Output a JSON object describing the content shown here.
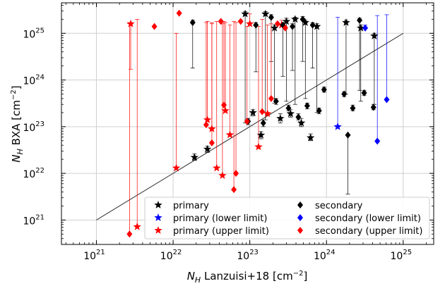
{
  "chart_data": {
    "type": "scatter",
    "xlabel_main": "N",
    "xlabel_sub": "H",
    "xlabel_rest": " Lanzuisi+18 [cm",
    "xlabel_sup": "−2",
    "xlabel_close": "]",
    "ylabel_main": "N",
    "ylabel_sub": "H",
    "ylabel_rest": " BXA [cm",
    "ylabel_sup": "−2",
    "ylabel_close": "]",
    "x_scale": "log",
    "y_scale": "log",
    "xlim": [
      3.5e+20,
      2.5e+25
    ],
    "ylim": [
      3e+20,
      4.5e+25
    ],
    "grid": true,
    "legend_position": "lower-right",
    "x_ticks": [
      {
        "base": "10",
        "exp": "21",
        "value": 1e+21
      },
      {
        "base": "10",
        "exp": "22",
        "value": 1e+22
      },
      {
        "base": "10",
        "exp": "23",
        "value": 1e+23
      },
      {
        "base": "10",
        "exp": "24",
        "value": 1e+24
      },
      {
        "base": "10",
        "exp": "25",
        "value": 1e+25
      }
    ],
    "y_ticks": [
      {
        "base": "10",
        "exp": "21",
        "value": 1e+21
      },
      {
        "base": "10",
        "exp": "22",
        "value": 1e+22
      },
      {
        "base": "10",
        "exp": "23",
        "value": 1e+23
      },
      {
        "base": "10",
        "exp": "24",
        "value": 1e+24
      },
      {
        "base": "10",
        "exp": "25",
        "value": 1e+25
      }
    ],
    "one_to_one_line": {
      "x": [
        1e+21,
        1e+25
      ],
      "y": [
        1e+21,
        1e+25
      ],
      "color": "#333333"
    },
    "legend": [
      {
        "label": "primary",
        "marker": "star",
        "color": "#000000"
      },
      {
        "label": "primary (lower limit)",
        "marker": "star",
        "color": "#0000ff"
      },
      {
        "label": "primary (upper limit)",
        "marker": "star",
        "color": "#ff0000"
      },
      {
        "label": "secondary",
        "marker": "diamond",
        "color": "#000000"
      },
      {
        "label": "secondary (lower limit)",
        "marker": "diamond",
        "color": "#0000ff"
      },
      {
        "label": "secondary (upper limit)",
        "marker": "diamond",
        "color": "#ff0000"
      }
    ],
    "series": [
      {
        "name": "primary",
        "marker": "star",
        "color": "#000000",
        "points": [
          {
            "x": 1.9e+22,
            "y": 2.2e+22,
            "ylo": 1.9e+22,
            "yhi": 2.6e+22
          },
          {
            "x": 2.8e+22,
            "y": 3.3e+22,
            "ylo": 2.8e+22,
            "yhi": 3.8e+22
          },
          {
            "x": 8.7e+22,
            "y": 2.6e+25,
            "ylo": 1.2e+23,
            "yhi": 2.9e+25
          },
          {
            "x": 1.1e+23,
            "y": 2e+23,
            "ylo": 1.7e+23,
            "yhi": 2.3e+23
          },
          {
            "x": 1.4e+23,
            "y": 6.6e+22,
            "ylo": 5.5e+22,
            "yhi": 7.8e+22
          },
          {
            "x": 1.6e+23,
            "y": 2.6e+25,
            "ylo": 1.4e+23,
            "yhi": 2.9e+25
          },
          {
            "x": 2.1e+23,
            "y": 1.3e+25,
            "ylo": 3.2e+23,
            "yhi": 1.5e+25
          },
          {
            "x": 2.5e+23,
            "y": 1.5e+23,
            "ylo": 1.2e+23,
            "yhi": 1.9e+23
          },
          {
            "x": 3e+23,
            "y": 1.8e+25,
            "ylo": 3.5e+23,
            "yhi": 2.1e+25
          },
          {
            "x": 3.4e+23,
            "y": 1.9e+23,
            "ylo": 1.6e+23,
            "yhi": 2.3e+23
          },
          {
            "x": 3.9e+23,
            "y": 2e+25,
            "ylo": 3e+23,
            "yhi": 2.2e+25
          },
          {
            "x": 4.7e+23,
            "y": 1.2e+23,
            "ylo": 1e+23,
            "yhi": 1.5e+23
          },
          {
            "x": 5.3e+23,
            "y": 1.7e+25,
            "ylo": 4e+23,
            "yhi": 1.9e+25
          },
          {
            "x": 6.2e+23,
            "y": 5.8e+22,
            "ylo": 5e+22,
            "yhi": 7e+22
          },
          {
            "x": 7.5e+23,
            "y": 1.4e+25,
            "ylo": 2e+23,
            "yhi": 1.6e+25
          },
          {
            "x": 1.8e+24,
            "y": 1.7e+25,
            "ylo": 5e+23,
            "yhi": 1.9e+25
          },
          {
            "x": 2.8e+24,
            "y": 1.3e+25,
            "ylo": 3.5e+23,
            "yhi": 1.5e+25
          },
          {
            "x": 4.2e+24,
            "y": 8.8e+24,
            "ylo": 3e+23,
            "yhi": 1e+25
          }
        ]
      },
      {
        "name": "primary (lower limit)",
        "marker": "star",
        "color": "#0000ff",
        "points": [
          {
            "x": 1.4e+24,
            "y": 1e+23,
            "ylo": 1e+23,
            "yhi": 2.2e+25
          }
        ]
      },
      {
        "name": "primary (upper limit)",
        "marker": "star",
        "color": "#ff0000",
        "points": [
          {
            "x": 2.8e+21,
            "y": 1.6e+25,
            "ylo": 1.7e+24,
            "yhi": 1.6e+25
          },
          {
            "x": 3.4e+21,
            "y": 7.2e+20,
            "ylo": 7.2e+20,
            "yhi": 2e+25
          },
          {
            "x": 1.1e+22,
            "y": 1.3e+22,
            "ylo": 1.3e+22,
            "yhi": 1e+25
          },
          {
            "x": 2.8e+22,
            "y": 1.4e+23,
            "ylo": 1.4e+23,
            "yhi": 1.8e+25
          },
          {
            "x": 3.2e+22,
            "y": 9e+22,
            "ylo": 9e+22,
            "yhi": 1.7e+25
          },
          {
            "x": 3.7e+22,
            "y": 1.3e+22,
            "ylo": 1.3e+22,
            "yhi": 1.8e+25
          },
          {
            "x": 4.4e+22,
            "y": 9e+21,
            "ylo": 9e+21,
            "yhi": 1.6e+25
          },
          {
            "x": 4.8e+22,
            "y": 2.2e+23,
            "ylo": 2.2e+23,
            "yhi": 1.7e+25
          },
          {
            "x": 5.5e+22,
            "y": 6.7e+22,
            "ylo": 6.7e+22,
            "yhi": 1.5e+25
          },
          {
            "x": 1e+23,
            "y": 1.6e+25,
            "ylo": 1.6e+25,
            "yhi": 2.6e+25
          },
          {
            "x": 1.3e+23,
            "y": 3.7e+22,
            "ylo": 3.7e+22,
            "yhi": 1.4e+25
          },
          {
            "x": 1.7e+23,
            "y": 1.9e+23,
            "ylo": 1.9e+23,
            "yhi": 1.5e+25
          },
          {
            "x": 2.6e+23,
            "y": 1.5e+25,
            "ylo": 1.5e+25,
            "yhi": 1.9e+25
          }
        ]
      },
      {
        "name": "secondary",
        "marker": "diamond",
        "color": "#000000",
        "points": [
          {
            "x": 1.8e+22,
            "y": 1.7e+25,
            "ylo": 1.8e+24,
            "yhi": 1.9e+25
          },
          {
            "x": 9.5e+22,
            "y": 1.3e+23,
            "ylo": 1.1e+23,
            "yhi": 1.5e+23
          },
          {
            "x": 1.2e+23,
            "y": 1.5e+25,
            "ylo": 1.5e+24,
            "yhi": 1.7e+25
          },
          {
            "x": 1.5e+23,
            "y": 1.2e+23,
            "ylo": 1e+23,
            "yhi": 1.4e+23
          },
          {
            "x": 1.9e+23,
            "y": 2.2e+25,
            "ylo": 2.5e+24,
            "yhi": 2.5e+25
          },
          {
            "x": 2.2e+23,
            "y": 3.5e+23,
            "ylo": 3e+23,
            "yhi": 4e+23
          },
          {
            "x": 2.7e+23,
            "y": 1.5e+25,
            "ylo": 1.2e+24,
            "yhi": 1.7e+25
          },
          {
            "x": 3.2e+23,
            "y": 2.5e+23,
            "ylo": 2.2e+23,
            "yhi": 2.9e+23
          },
          {
            "x": 3.6e+23,
            "y": 1.4e+25,
            "ylo": 1.6e+24,
            "yhi": 1.6e+25
          },
          {
            "x": 4.3e+23,
            "y": 1.6e+23,
            "ylo": 1.4e+23,
            "yhi": 1.9e+23
          },
          {
            "x": 4.9e+23,
            "y": 2e+25,
            "ylo": 2.5e+24,
            "yhi": 2.3e+25
          },
          {
            "x": 5.6e+23,
            "y": 2.8e+23,
            "ylo": 2.4e+23,
            "yhi": 3.2e+23
          },
          {
            "x": 6.6e+23,
            "y": 1.5e+25,
            "ylo": 1.8e+24,
            "yhi": 1.7e+25
          },
          {
            "x": 8e+23,
            "y": 2.2e+23,
            "ylo": 1.9e+23,
            "yhi": 2.5e+23
          },
          {
            "x": 9.3e+23,
            "y": 6.2e+23,
            "ylo": 5.5e+23,
            "yhi": 7e+23
          },
          {
            "x": 1.7e+24,
            "y": 5e+23,
            "ylo": 4.4e+23,
            "yhi": 5.6e+23
          },
          {
            "x": 1.9e+24,
            "y": 6.6e+22,
            "ylo": 3.6e+21,
            "yhi": 6.6e+22
          },
          {
            "x": 2.2e+24,
            "y": 2.5e+23,
            "ylo": 2.2e+23,
            "yhi": 2.9e+23
          },
          {
            "x": 2.7e+24,
            "y": 1.9e+25,
            "ylo": 6e+23,
            "yhi": 2.1e+25
          },
          {
            "x": 3.1e+24,
            "y": 5.3e+23,
            "ylo": 4.7e+23,
            "yhi": 6e+23
          },
          {
            "x": 4.1e+24,
            "y": 2.6e+23,
            "ylo": 2.3e+23,
            "yhi": 3e+23
          }
        ]
      },
      {
        "name": "secondary (lower limit)",
        "marker": "diamond",
        "color": "#0000ff",
        "points": [
          {
            "x": 3.2e+24,
            "y": 1.3e+25,
            "ylo": 1.3e+25,
            "yhi": 1.5e+25
          },
          {
            "x": 4.6e+24,
            "y": 4.9e+22,
            "ylo": 4.9e+22,
            "yhi": 2.4e+25
          },
          {
            "x": 6.1e+24,
            "y": 3.8e+23,
            "ylo": 3.8e+23,
            "yhi": 2.5e+25
          }
        ]
      },
      {
        "name": "secondary (upper limit)",
        "marker": "diamond",
        "color": "#ff0000",
        "points": [
          {
            "x": 2.7e+21,
            "y": 5e+20,
            "ylo": 5e+20,
            "yhi": 1.6e+25
          },
          {
            "x": 5.7e+21,
            "y": 1.4e+25,
            "ylo": 1.4e+25,
            "yhi": 1.4e+25
          },
          {
            "x": 1.2e+22,
            "y": 2.7e+25,
            "ylo": 2.7e+25,
            "yhi": 2.7e+25
          },
          {
            "x": 2.7e+22,
            "y": 1.1e+23,
            "ylo": 1.1e+23,
            "yhi": 1.7e+25
          },
          {
            "x": 4.2e+22,
            "y": 1.8e+25,
            "ylo": 1.8e+25,
            "yhi": 1.9e+25
          },
          {
            "x": 4.6e+22,
            "y": 2.9e+23,
            "ylo": 2.9e+23,
            "yhi": 1.8e+25
          },
          {
            "x": 6.2e+22,
            "y": 4.5e+21,
            "ylo": 4.5e+21,
            "yhi": 1.8e+25
          },
          {
            "x": 6.6e+22,
            "y": 1e+22,
            "ylo": 1e+22,
            "yhi": 1.7e+25
          },
          {
            "x": 7.6e+22,
            "y": 1.8e+25,
            "ylo": 1.8e+25,
            "yhi": 1.9e+25
          },
          {
            "x": 9.2e+22,
            "y": 1.3e+23,
            "ylo": 1.3e+23,
            "yhi": 1.4e+25
          },
          {
            "x": 1.45e+23,
            "y": 2.1e+23,
            "ylo": 2.1e+23,
            "yhi": 2e+25
          },
          {
            "x": 1.9e+23,
            "y": 4e+23,
            "ylo": 4e+23,
            "yhi": 1.6e+25
          },
          {
            "x": 2.3e+23,
            "y": 1.6e+25,
            "ylo": 1.6e+25,
            "yhi": 1.7e+25
          },
          {
            "x": 2.9e+23,
            "y": 1.3e+25,
            "ylo": 1.3e+25,
            "yhi": 1.4e+25
          },
          {
            "x": 3.2e+22,
            "y": 4.5e+22,
            "ylo": 4.5e+22,
            "yhi": 1.6e+25
          }
        ]
      }
    ]
  }
}
